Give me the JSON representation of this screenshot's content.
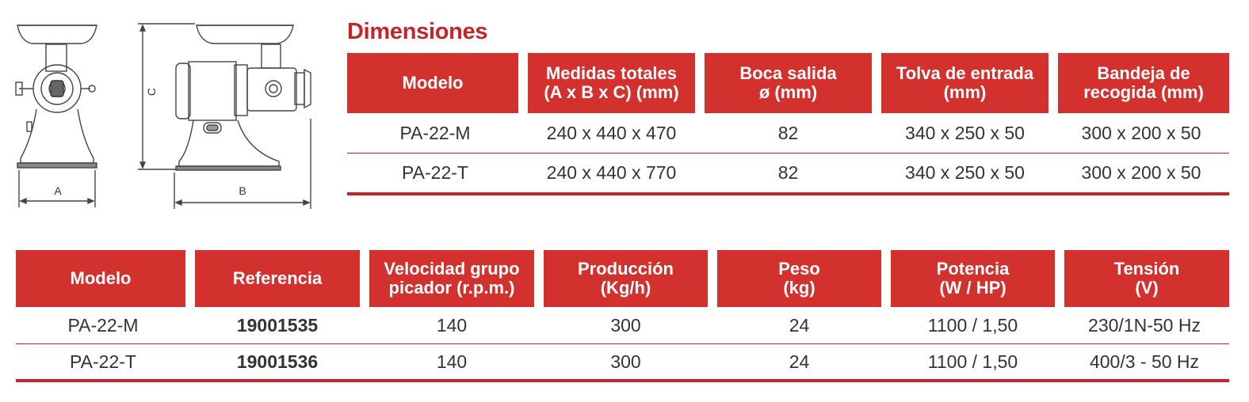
{
  "drawing": {
    "label_a": "A",
    "label_b": "B",
    "label_c": "C"
  },
  "dimensions": {
    "title": "Dimensiones",
    "headers": [
      "Modelo",
      "Medidas totales\n(A x B x C) (mm)",
      "Boca salida\nø (mm)",
      "Tolva de entrada\n(mm)",
      "Bandeja de\nrecogida (mm)"
    ],
    "rows": [
      [
        "PA-22-M",
        "240 x 440 x 470",
        "82",
        "340 x 250 x 50",
        "300 x 200 x 50"
      ],
      [
        "PA-22-T",
        "240 x 440 x 770",
        "82",
        "340 x 250 x 50",
        "300 x 200 x 50"
      ]
    ]
  },
  "specs": {
    "headers": [
      "Modelo",
      "Referencia",
      "Velocidad grupo\npicador (r.p.m.)",
      "Producción\n(Kg/h)",
      "Peso\n(kg)",
      "Potencia\n(W / HP)",
      "Tensión\n(V)"
    ],
    "rows": [
      [
        "PA-22-M",
        "19001535",
        "140",
        "300",
        "24",
        "1100 / 1,50",
        "230/1N-50 Hz"
      ],
      [
        "PA-22-T",
        "19001536",
        "140",
        "300",
        "24",
        "1100 / 1,50",
        "400/3 - 50 Hz"
      ]
    ]
  },
  "colors": {
    "accent": "#d3312d",
    "title": "#c5242a",
    "rule": "#c5242a"
  }
}
